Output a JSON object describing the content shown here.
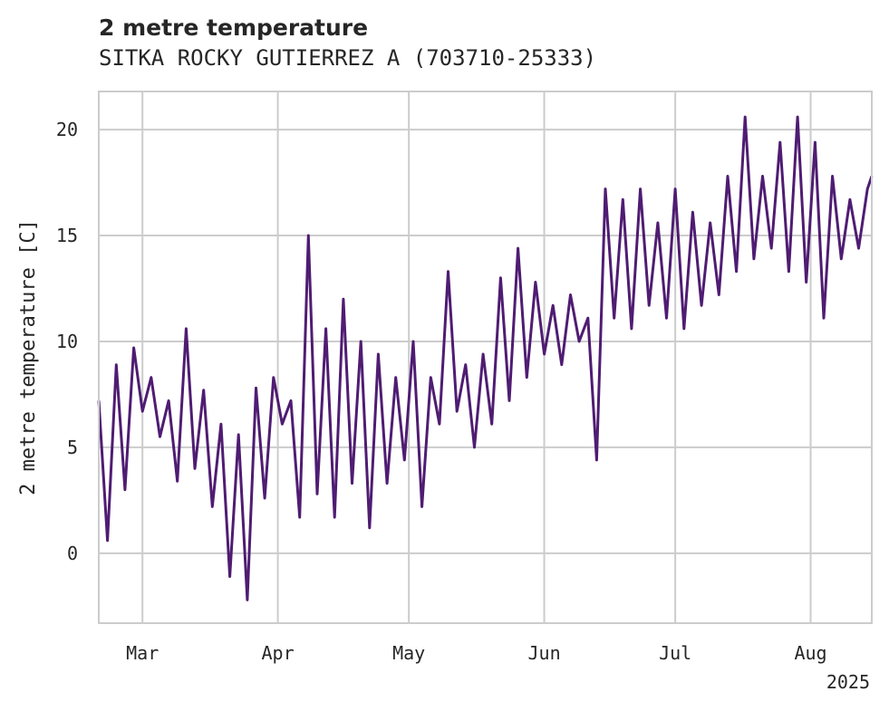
{
  "chart_data": {
    "type": "line",
    "title": "2 metre temperature",
    "subtitle": "SITKA ROCKY GUTIERREZ A (703710-25333)",
    "xlabel": "",
    "ylabel": "2 metre temperature [C]",
    "year_label": "2025",
    "xlim": [
      "2025-02-19",
      "2025-08-15"
    ],
    "ylim": [
      -3.3,
      21.8
    ],
    "grid": true,
    "line_color": "#4f1c72",
    "x_ticks": [
      {
        "date": "2025-03-01",
        "label": "Mar"
      },
      {
        "date": "2025-04-01",
        "label": "Apr"
      },
      {
        "date": "2025-05-01",
        "label": "May"
      },
      {
        "date": "2025-06-01",
        "label": "Jun"
      },
      {
        "date": "2025-07-01",
        "label": "Jul"
      },
      {
        "date": "2025-08-01",
        "label": "Aug"
      }
    ],
    "y_ticks": [
      0,
      5,
      10,
      15,
      20
    ],
    "series": [
      {
        "x": [
          "2025-02-19",
          "2025-02-21",
          "2025-02-23",
          "2025-02-25",
          "2025-02-27",
          "2025-03-01",
          "2025-03-03",
          "2025-03-05",
          "2025-03-07",
          "2025-03-09",
          "2025-03-11",
          "2025-03-13",
          "2025-03-15",
          "2025-03-17",
          "2025-03-19",
          "2025-03-21",
          "2025-03-23",
          "2025-03-25",
          "2025-03-27",
          "2025-03-29",
          "2025-03-31",
          "2025-04-02",
          "2025-04-04",
          "2025-04-06",
          "2025-04-08",
          "2025-04-10",
          "2025-04-12",
          "2025-04-14",
          "2025-04-16",
          "2025-04-18",
          "2025-04-20",
          "2025-04-22",
          "2025-04-24",
          "2025-04-26",
          "2025-04-28",
          "2025-04-30",
          "2025-05-02",
          "2025-05-04",
          "2025-05-06",
          "2025-05-08",
          "2025-05-10",
          "2025-05-12",
          "2025-05-14",
          "2025-05-16",
          "2025-05-18",
          "2025-05-20",
          "2025-05-22",
          "2025-05-24",
          "2025-05-26",
          "2025-05-28",
          "2025-05-30",
          "2025-06-01",
          "2025-06-03",
          "2025-06-05",
          "2025-06-07",
          "2025-06-09",
          "2025-06-11",
          "2025-06-13",
          "2025-06-15",
          "2025-06-17",
          "2025-06-19",
          "2025-06-21",
          "2025-06-23",
          "2025-06-25",
          "2025-06-27",
          "2025-06-29",
          "2025-07-01",
          "2025-07-03",
          "2025-07-05",
          "2025-07-07",
          "2025-07-09",
          "2025-07-11",
          "2025-07-13",
          "2025-07-15",
          "2025-07-17",
          "2025-07-19",
          "2025-07-21",
          "2025-07-23",
          "2025-07-25",
          "2025-07-27",
          "2025-07-29",
          "2025-07-31",
          "2025-08-02",
          "2025-08-04",
          "2025-08-06",
          "2025-08-08",
          "2025-08-10",
          "2025-08-12",
          "2025-08-14",
          "2025-08-15"
        ],
        "values": [
          7.2,
          0.6,
          8.9,
          3.0,
          9.7,
          6.7,
          8.3,
          5.5,
          7.2,
          3.4,
          10.6,
          4.0,
          7.7,
          2.2,
          6.1,
          -1.1,
          5.6,
          -2.2,
          7.8,
          2.6,
          8.3,
          6.1,
          7.2,
          1.7,
          15.0,
          2.8,
          10.6,
          1.7,
          12.0,
          3.3,
          10.0,
          1.2,
          9.4,
          3.3,
          8.3,
          4.4,
          10.0,
          2.2,
          8.3,
          6.1,
          13.3,
          6.7,
          8.9,
          5.0,
          9.4,
          6.1,
          13.0,
          7.2,
          14.4,
          8.3,
          12.8,
          9.4,
          11.7,
          8.9,
          12.2,
          10.0,
          11.1,
          4.4,
          17.2,
          11.1,
          16.7,
          10.6,
          17.2,
          11.7,
          15.6,
          11.1,
          17.2,
          10.6,
          16.1,
          11.7,
          15.6,
          12.2,
          17.8,
          13.3,
          20.6,
          13.9,
          17.8,
          14.4,
          19.4,
          13.3,
          20.6,
          12.8,
          19.4,
          11.1,
          17.8,
          13.9,
          16.7,
          14.4,
          17.2,
          17.8
        ]
      }
    ]
  }
}
